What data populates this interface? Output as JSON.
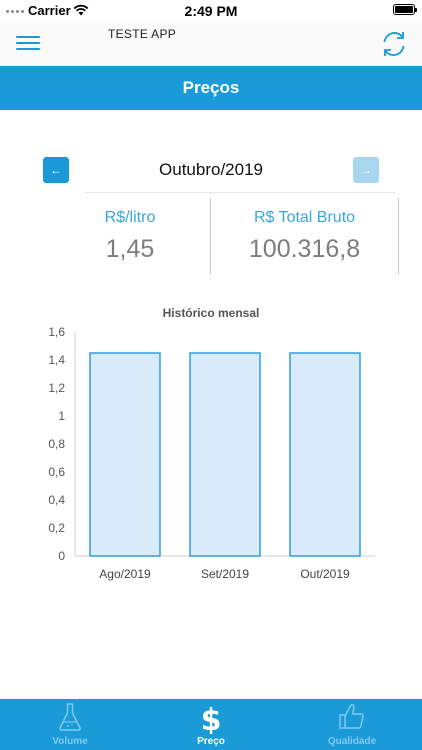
{
  "status_bar": {
    "carrier": "Carrier",
    "time": "2:49 PM"
  },
  "header": {
    "app_title": "TESTE APP",
    "menu_icon": "hamburger-menu-icon",
    "refresh_icon": "refresh-icon"
  },
  "page": {
    "title": "Preços"
  },
  "month_selector": {
    "label": "Outubro/2019",
    "prev_arrow": "←",
    "next_arrow": "→"
  },
  "stats": {
    "price_label": "R$/litro",
    "price_value": "1,45",
    "total_label": "R$ Total Bruto",
    "total_value": "100.316,8"
  },
  "chart_data": {
    "type": "bar",
    "title": "Histórico mensal",
    "categories": [
      "Ago/2019",
      "Set/2019",
      "Out/2019"
    ],
    "values": [
      1.45,
      1.45,
      1.45
    ],
    "ylim": [
      0,
      1.6
    ],
    "yticks": [
      0,
      0.2,
      0.4,
      0.6,
      0.8,
      1,
      1.2,
      1.4,
      1.6
    ],
    "ytick_labels": [
      "0",
      "0,2",
      "0,4",
      "0,6",
      "0,8",
      "1",
      "1,2",
      "1,4",
      "1,6"
    ],
    "bar_fill": "#d9ebf8",
    "bar_stroke": "#2f9fe0",
    "grid": false,
    "legend": "none"
  },
  "tabs": [
    {
      "label": "Volume",
      "icon": "flask-icon",
      "active": false
    },
    {
      "label": "Preço",
      "icon": "dollar-icon",
      "active": true
    },
    {
      "label": "Qualidade",
      "icon": "thumbs-up-icon",
      "active": false
    }
  ],
  "colors": {
    "primary": "#1a9bd7",
    "secondary_text": "#7d7d7d",
    "accent_label": "#3aa7dc"
  }
}
